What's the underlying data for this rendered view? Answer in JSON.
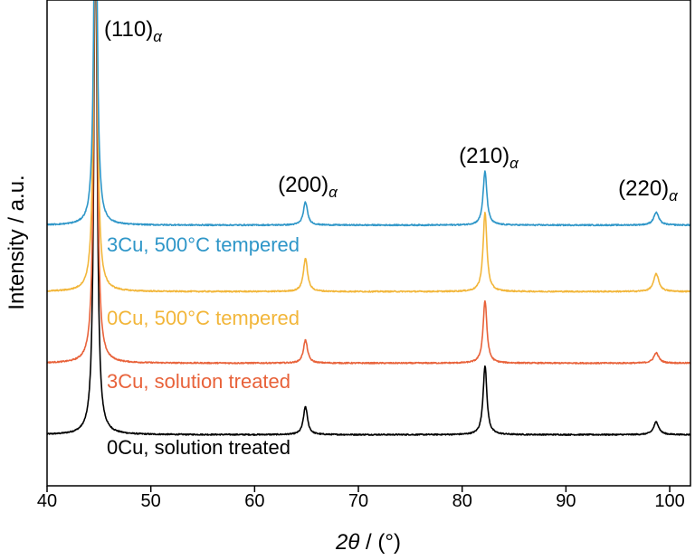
{
  "chart_data": {
    "type": "line",
    "xlabel_symbol": "2θ",
    "xlabel_unit": " / (°)",
    "ylabel": "Intensity / a.u.",
    "xlim": [
      40,
      102
    ],
    "x_ticks": [
      40,
      50,
      60,
      70,
      80,
      90,
      100
    ],
    "x_tick_labels": [
      "40",
      "50",
      "60",
      "70",
      "80",
      "90",
      "100"
    ],
    "y_ticks_shown": false,
    "peak_labels": [
      {
        "hkl": "(110)",
        "phase": "α",
        "x": 44.7
      },
      {
        "hkl": "(200)",
        "phase": "α",
        "x": 65.0
      },
      {
        "hkl": "(210)",
        "phase": "α",
        "x": 82.3
      },
      {
        "hkl": "(220)",
        "phase": "α",
        "x": 98.8
      }
    ],
    "series": [
      {
        "name": "0Cu, solution treated",
        "color": "#000000",
        "baseline": 1.0,
        "noise": 0.012,
        "peaks": [
          [
            44.67,
            10.6,
            0.18
          ],
          [
            64.9,
            0.55,
            0.24
          ],
          [
            82.2,
            1.35,
            0.22
          ],
          [
            98.7,
            0.25,
            0.3
          ]
        ]
      },
      {
        "name": "3Cu, solution treated",
        "color": "#e8623a",
        "baseline": 2.4,
        "noise": 0.012,
        "peaks": [
          [
            44.67,
            10.0,
            0.18
          ],
          [
            64.9,
            0.45,
            0.24
          ],
          [
            82.2,
            1.22,
            0.22
          ],
          [
            98.7,
            0.2,
            0.3
          ]
        ]
      },
      {
        "name": "0Cu, 500°C tempered",
        "color": "#f2b63a",
        "baseline": 3.8,
        "noise": 0.012,
        "peaks": [
          [
            44.67,
            9.2,
            0.18
          ],
          [
            64.9,
            0.65,
            0.24
          ],
          [
            82.2,
            1.55,
            0.22
          ],
          [
            98.7,
            0.35,
            0.3
          ]
        ]
      },
      {
        "name": "3Cu, 500°C tempered",
        "color": "#2e96c8",
        "baseline": 5.1,
        "noise": 0.012,
        "peaks": [
          [
            44.67,
            8.0,
            0.18
          ],
          [
            64.9,
            0.45,
            0.24
          ],
          [
            82.2,
            1.05,
            0.22
          ],
          [
            98.7,
            0.25,
            0.3
          ]
        ]
      }
    ]
  },
  "legend_labels": [
    {
      "text": "0Cu, solution treated",
      "color": "#000000",
      "series_index": 0
    },
    {
      "text": "3Cu, solution treated",
      "color": "#e8623a",
      "series_index": 1
    },
    {
      "text": "0Cu, 500°C tempered",
      "color": "#f2b63a",
      "series_index": 2
    },
    {
      "text": "3Cu, 500°C tempered",
      "color": "#2e96c8",
      "series_index": 3
    }
  ]
}
